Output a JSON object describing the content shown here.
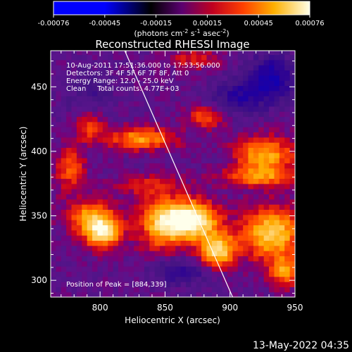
{
  "colorbar": {
    "ticks": [
      "-0.00076",
      "-0.00045",
      "-0.00015",
      "0.00015",
      "0.00045",
      "0.00076"
    ],
    "units_line": "(photons cm",
    "units_exp1": "-2",
    "units_mid": " s",
    "units_exp2": "-1",
    "units_mid2": " asec",
    "units_exp3": "-2",
    "units_end": ")"
  },
  "chart_data": {
    "type": "heatmap",
    "title": "Reconstructed RHESSI Image",
    "xlabel": "Heliocentric X (arcsec)",
    "ylabel": "Heliocentric Y (arcsec)",
    "xlim": [
      762,
      950
    ],
    "ylim": [
      287,
      478
    ],
    "x_ticks": [
      800,
      850,
      900,
      950
    ],
    "y_ticks": [
      300,
      350,
      400,
      450
    ],
    "color_range": [
      -0.00076,
      0.00076
    ],
    "annotations": [
      "10-Aug-2011 17:51:36.000 to 17:53:56.000",
      "Detectors: 3F 4F 5F 6F 7F 8F, Att 0",
      "Energy Range: 12.0 - 25.0 keV",
      "Clean     Total counts: 4.77E+03"
    ],
    "peak_label": "Position of Peak = [884,339]",
    "limb_line": [
      [
        819,
        478
      ],
      [
        902,
        287
      ]
    ],
    "blobs": [
      {
        "x": 868,
        "y": 345,
        "sx": 14,
        "sy": 10,
        "a": 0.00076
      },
      {
        "x": 888,
        "y": 322,
        "sx": 10,
        "sy": 9,
        "a": 0.0006
      },
      {
        "x": 800,
        "y": 335,
        "sx": 10,
        "sy": 8,
        "a": 0.00062
      },
      {
        "x": 790,
        "y": 348,
        "sx": 14,
        "sy": 8,
        "a": 0.0004
      },
      {
        "x": 845,
        "y": 342,
        "sx": 12,
        "sy": 14,
        "a": 0.00045
      },
      {
        "x": 930,
        "y": 335,
        "sx": 16,
        "sy": 14,
        "a": 0.00055
      },
      {
        "x": 940,
        "y": 305,
        "sx": 8,
        "sy": 8,
        "a": 0.0004
      },
      {
        "x": 830,
        "y": 408,
        "sx": 18,
        "sy": 6,
        "a": 0.00042
      },
      {
        "x": 790,
        "y": 418,
        "sx": 8,
        "sy": 8,
        "a": 0.0003
      },
      {
        "x": 880,
        "y": 425,
        "sx": 10,
        "sy": 6,
        "a": 0.0003
      },
      {
        "x": 925,
        "y": 395,
        "sx": 16,
        "sy": 10,
        "a": 0.00045
      },
      {
        "x": 920,
        "y": 378,
        "sx": 20,
        "sy": 5,
        "a": 0.00032
      },
      {
        "x": 775,
        "y": 385,
        "sx": 8,
        "sy": 12,
        "a": 0.0003
      },
      {
        "x": 835,
        "y": 372,
        "sx": 20,
        "sy": 6,
        "a": 0.00018
      },
      {
        "x": 870,
        "y": 470,
        "sx": 14,
        "sy": 6,
        "a": 0.0002
      },
      {
        "x": 930,
        "y": 455,
        "sx": 12,
        "sy": 12,
        "a": -0.00035
      },
      {
        "x": 905,
        "y": 440,
        "sx": 14,
        "sy": 10,
        "a": -0.00025
      },
      {
        "x": 860,
        "y": 305,
        "sx": 16,
        "sy": 8,
        "a": -0.0002
      },
      {
        "x": 790,
        "y": 440,
        "sx": 14,
        "sy": 14,
        "a": -0.00012
      }
    ]
  },
  "footer": {
    "date": "13-May-2022 04:35"
  }
}
